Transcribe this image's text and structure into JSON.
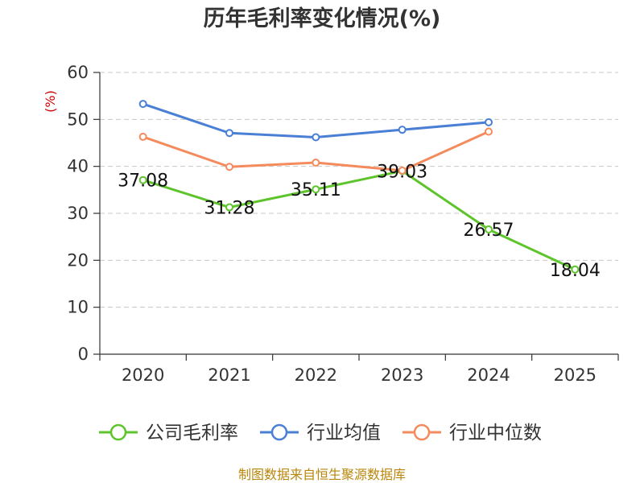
{
  "chart_data": {
    "type": "line",
    "title": "历年毛利率变化情况(%)",
    "ylabel": "(%)",
    "xlabel": "",
    "categories": [
      "2020",
      "2021",
      "2022",
      "2023",
      "2024",
      "2025"
    ],
    "ylim": [
      0,
      60
    ],
    "yticks": [
      0,
      10,
      20,
      30,
      40,
      50,
      60
    ],
    "grid": true,
    "legend_position": "bottom",
    "series": [
      {
        "name": "公司毛利率",
        "color": "#5ec42b",
        "values": [
          37.08,
          31.28,
          35.11,
          39.03,
          26.57,
          18.04
        ],
        "labels": [
          "37.08",
          "31.28",
          "35.11",
          "39.03",
          "26.57",
          "18.04"
        ]
      },
      {
        "name": "行业均值",
        "color": "#4a7fd6",
        "values": [
          53.3,
          47.1,
          46.2,
          47.8,
          49.4,
          null
        ]
      },
      {
        "name": "行业中位数",
        "color": "#f58b5c",
        "values": [
          46.3,
          39.9,
          40.8,
          39.1,
          47.4,
          null
        ]
      }
    ],
    "source": "制图数据来自恒生聚源数据库"
  }
}
